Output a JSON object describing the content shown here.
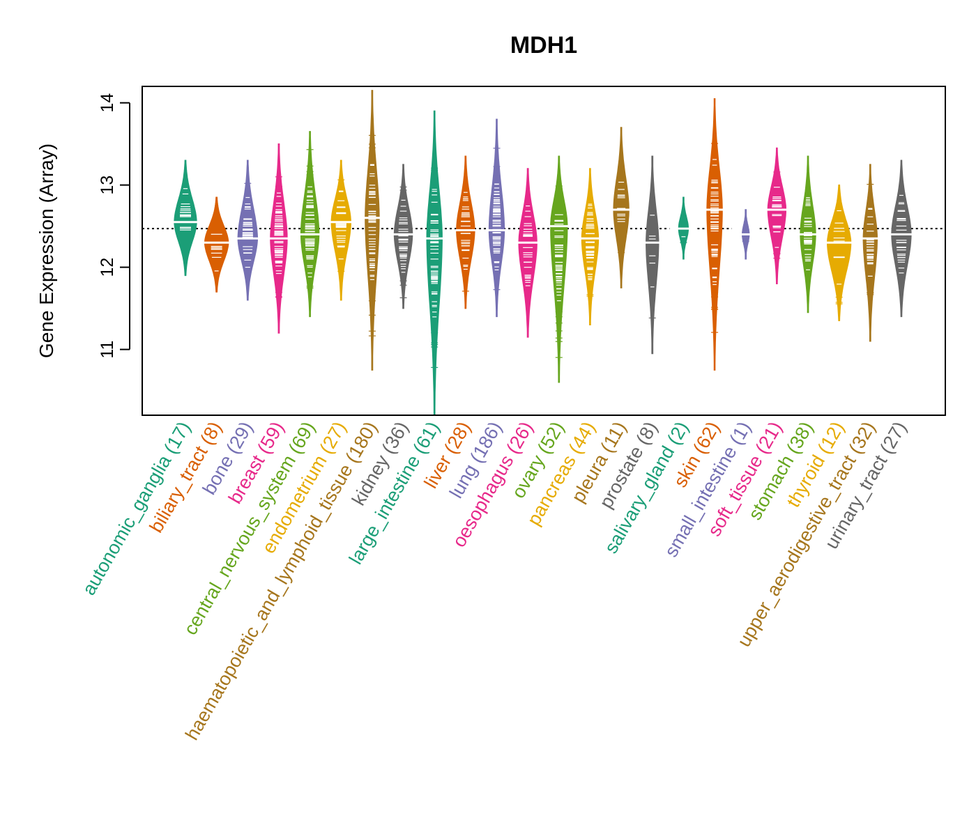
{
  "chart_data": {
    "type": "beanplot",
    "title": "MDH1",
    "ylabel": "Gene Expression (Array)",
    "xlabel": "",
    "ylim": [
      10.2,
      14.2
    ],
    "yticks": [
      11,
      12,
      13,
      14
    ],
    "reference_line": 12.47,
    "categories": [
      {
        "name": "autonomic_ganglia",
        "n": 17,
        "label": "autonomic_ganglia (17)",
        "color": "#1b9e77",
        "median": 12.55,
        "min": 11.9,
        "max": 13.3,
        "width": 0.8
      },
      {
        "name": "biliary_tract",
        "n": 8,
        "label": "biliary_tract (8)",
        "color": "#d95f02",
        "median": 12.3,
        "min": 11.7,
        "max": 12.85,
        "width": 0.85
      },
      {
        "name": "bone",
        "n": 29,
        "label": "bone (29)",
        "color": "#7570b3",
        "median": 12.35,
        "min": 11.6,
        "max": 13.3,
        "width": 0.7
      },
      {
        "name": "breast",
        "n": 59,
        "label": "breast (59)",
        "color": "#e7298a",
        "median": 12.35,
        "min": 11.2,
        "max": 13.5,
        "width": 0.6
      },
      {
        "name": "central_nervous_system",
        "n": 69,
        "label": "central_nervous_system (69)",
        "color": "#66a61e",
        "median": 12.4,
        "min": 11.4,
        "max": 13.65,
        "width": 0.65
      },
      {
        "name": "endometrium",
        "n": 27,
        "label": "endometrium (27)",
        "color": "#e6ab02",
        "median": 12.55,
        "min": 11.6,
        "max": 13.3,
        "width": 0.7
      },
      {
        "name": "haematopoietic_and_lymphoid_tissue",
        "n": 180,
        "label": "haematopoietic_and_lymphoid_tissue (180)",
        "color": "#a6761d",
        "median": 12.6,
        "min": 10.75,
        "max": 14.15,
        "width": 0.5
      },
      {
        "name": "kidney",
        "n": 36,
        "label": "kidney (36)",
        "color": "#666666",
        "median": 12.4,
        "min": 11.5,
        "max": 13.25,
        "width": 0.65
      },
      {
        "name": "large_intestine",
        "n": 61,
        "label": "large_intestine (61)",
        "color": "#1b9e77",
        "median": 12.35,
        "min": 10.2,
        "max": 13.9,
        "width": 0.55
      },
      {
        "name": "liver",
        "n": 28,
        "label": "liver (28)",
        "color": "#d95f02",
        "median": 12.45,
        "min": 11.5,
        "max": 13.35,
        "width": 0.65
      },
      {
        "name": "lung",
        "n": 186,
        "label": "lung (186)",
        "color": "#7570b3",
        "median": 12.45,
        "min": 11.4,
        "max": 13.8,
        "width": 0.55
      },
      {
        "name": "oesophagus",
        "n": 26,
        "label": "oesophagus (26)",
        "color": "#e7298a",
        "median": 12.3,
        "min": 11.15,
        "max": 13.2,
        "width": 0.65
      },
      {
        "name": "ovary",
        "n": 52,
        "label": "ovary (52)",
        "color": "#66a61e",
        "median": 12.5,
        "min": 10.6,
        "max": 13.35,
        "width": 0.6
      },
      {
        "name": "pancreas",
        "n": 44,
        "label": "pancreas (44)",
        "color": "#e6ab02",
        "median": 12.35,
        "min": 11.3,
        "max": 13.2,
        "width": 0.6
      },
      {
        "name": "pleura",
        "n": 11,
        "label": "pleura (11)",
        "color": "#a6761d",
        "median": 12.7,
        "min": 11.75,
        "max": 13.7,
        "width": 0.55
      },
      {
        "name": "prostate",
        "n": 8,
        "label": "prostate (8)",
        "color": "#666666",
        "median": 12.3,
        "min": 10.95,
        "max": 13.35,
        "width": 0.45
      },
      {
        "name": "salivary_gland",
        "n": 2,
        "label": "salivary_gland (2)",
        "color": "#1b9e77",
        "median": 12.47,
        "min": 12.1,
        "max": 12.85,
        "width": 0.35
      },
      {
        "name": "skin",
        "n": 62,
        "label": "skin (62)",
        "color": "#d95f02",
        "median": 12.7,
        "min": 10.75,
        "max": 14.05,
        "width": 0.55
      },
      {
        "name": "small_intestine",
        "n": 1,
        "label": "small_intestine (1)",
        "color": "#7570b3",
        "median": 12.4,
        "min": 12.1,
        "max": 12.7,
        "width": 0.25
      },
      {
        "name": "soft_tissue",
        "n": 21,
        "label": "soft_tissue (21)",
        "color": "#e7298a",
        "median": 12.7,
        "min": 11.8,
        "max": 13.45,
        "width": 0.65
      },
      {
        "name": "stomach",
        "n": 38,
        "label": "stomach (38)",
        "color": "#66a61e",
        "median": 12.4,
        "min": 11.45,
        "max": 13.35,
        "width": 0.55
      },
      {
        "name": "thyroid",
        "n": 12,
        "label": "thyroid (12)",
        "color": "#e6ab02",
        "median": 12.3,
        "min": 11.35,
        "max": 13.0,
        "width": 0.85
      },
      {
        "name": "upper_aerodigestive_tract",
        "n": 32,
        "label": "upper_aerodigestive_tract (32)",
        "color": "#a6761d",
        "median": 12.35,
        "min": 11.1,
        "max": 13.25,
        "width": 0.5
      },
      {
        "name": "urinary_tract",
        "n": 27,
        "label": "urinary_tract (27)",
        "color": "#666666",
        "median": 12.4,
        "min": 11.4,
        "max": 13.3,
        "width": 0.7
      }
    ]
  }
}
